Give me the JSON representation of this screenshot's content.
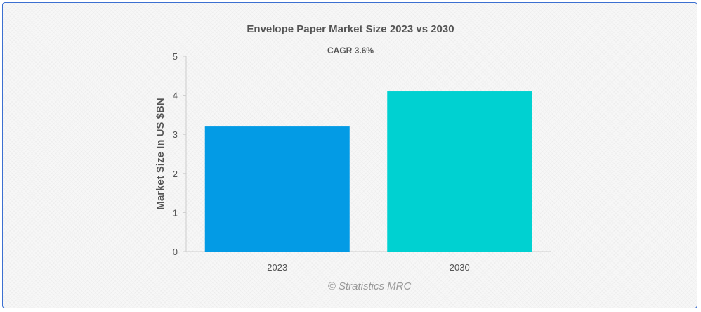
{
  "chart_data": {
    "type": "bar",
    "title": "Envelope Paper Market Size 2023 vs 2030",
    "subtitle": "CAGR 3.6%",
    "categories": [
      "2023",
      "2030"
    ],
    "values": [
      3.2,
      4.1
    ],
    "colors": [
      "#039be5",
      "#00d1d1"
    ],
    "xlabel": "",
    "ylabel": "Market Size In US $BN",
    "ylim": [
      0,
      5
    ],
    "yticks": [
      "0",
      "1",
      "2",
      "3",
      "4",
      "5"
    ],
    "grid": false,
    "legend": "none"
  },
  "credit": "© Stratistics MRC"
}
